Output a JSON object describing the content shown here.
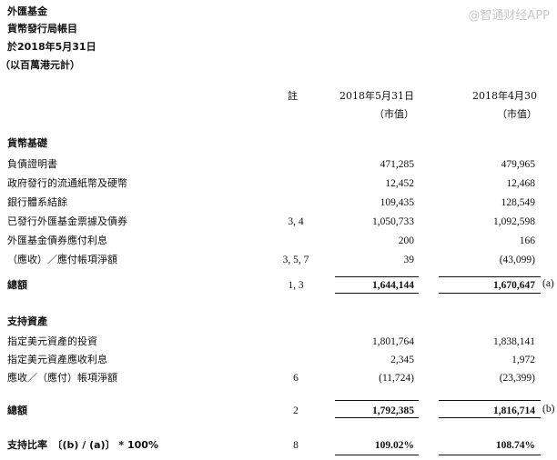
{
  "title_lines": [
    "外匯基金",
    "貨幣發行局帳目",
    "於2018年5月31日",
    "（以百萬港元計）"
  ],
  "header": {
    "note": "註",
    "col1": "2018年5月31日",
    "col1_sub": "（市值）",
    "col2": "2018年4月30",
    "col2_sub": "（市值）"
  },
  "section1": {
    "title": "貨幣基礎",
    "rows": [
      {
        "label": "負債證明書",
        "note": "",
        "v1": "471,285",
        "v2": "479,965"
      },
      {
        "label": "政府發行的流通紙幣及硬幣",
        "note": "",
        "v1": "12,452",
        "v2": "12,468"
      },
      {
        "label": "銀行體系結餘",
        "note": "",
        "v1": "109,435",
        "v2": "128,549"
      },
      {
        "label": "已發行外匯基金票據及債券",
        "note": "3, 4",
        "v1": "1,050,733",
        "v2": "1,092,598"
      },
      {
        "label": "外匯基金債券應付利息",
        "note": "",
        "v1": "200",
        "v2": "166"
      },
      {
        "label": "（應收）／應付帳項淨額",
        "note": "3, 5, 7",
        "v1": "39",
        "v2": "(43,099)"
      }
    ],
    "total": {
      "label": "總額",
      "note": "1, 3",
      "v1": "1,644,144",
      "v2": "1,670,647",
      "tag": "(a)"
    }
  },
  "section2": {
    "title": "支持資產",
    "rows": [
      {
        "label": "指定美元資產的投資",
        "note": "",
        "v1": "1,801,764",
        "v2": "1,838,141"
      },
      {
        "label": "指定美元資產應收利息",
        "note": "",
        "v1": "2,345",
        "v2": "1,972"
      },
      {
        "label": "應收／（應付）帳項淨額",
        "note": "6",
        "v1": "(11,724)",
        "v2": "(23,399)"
      }
    ],
    "total": {
      "label": "總額",
      "note": "2",
      "v1": "1,792,385",
      "v2": "1,816,714",
      "tag": "(b)"
    }
  },
  "ratio": {
    "label": "支持比率　〔(b) / (a)〕 * 100%",
    "note": "8",
    "v1": "109.02%",
    "v2": "108.74%"
  },
  "watermark": "@智通财经APP"
}
